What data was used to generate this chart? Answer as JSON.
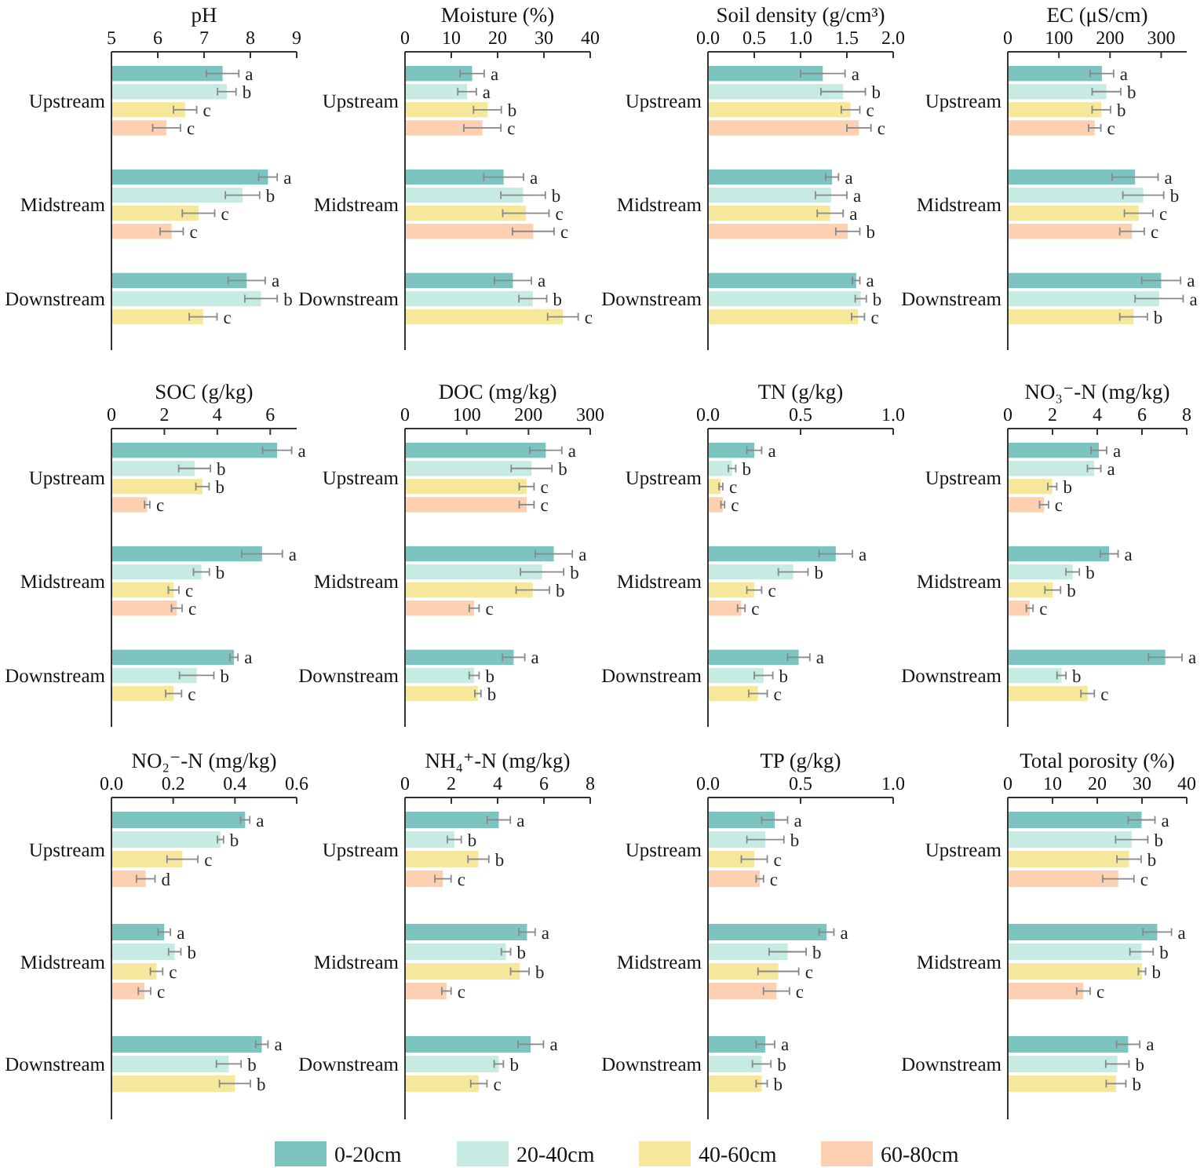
{
  "chart_data": [
    {
      "type": "bar",
      "orientation": "horizontal",
      "title": "pH",
      "categories": [
        "Upstream",
        "Midstream",
        "Downstream"
      ],
      "xlim": [
        5,
        9
      ],
      "xticks": [
        5,
        6,
        7,
        8,
        9
      ],
      "legend": "bottom",
      "series": [
        {
          "name": "0-20cm",
          "color": "#7dc4c0",
          "values": [
            7.4,
            8.38,
            7.92
          ],
          "errors": [
            0.35,
            0.2,
            0.4
          ],
          "value_labels": [
            "a",
            "a",
            "a"
          ]
        },
        {
          "name": "20-40cm",
          "color": "#c5ebe3",
          "values": [
            7.49,
            7.83,
            8.23
          ],
          "errors": [
            0.2,
            0.37,
            0.35
          ],
          "value_labels": [
            "b",
            "b",
            "b"
          ]
        },
        {
          "name": "40-60cm",
          "color": "#f5e79b",
          "values": [
            6.59,
            6.88,
            6.98
          ],
          "errors": [
            0.25,
            0.35,
            0.3
          ],
          "value_labels": [
            "c",
            "c",
            "c"
          ]
        },
        {
          "name": "60-80cm",
          "color": "#fcd0b0",
          "values": [
            6.19,
            6.3,
            null
          ],
          "errors": [
            0.3,
            0.25,
            null
          ],
          "value_labels": [
            "c",
            "c",
            null
          ]
        }
      ]
    },
    {
      "type": "bar",
      "orientation": "horizontal",
      "title": "Moisture (%)",
      "categories": [
        "Upstream",
        "Midstream",
        "Downstream"
      ],
      "xlim": [
        0,
        40
      ],
      "xticks": [
        0,
        10,
        20,
        30,
        40
      ],
      "legend": "bottom",
      "series": [
        {
          "name": "0-20cm",
          "color": "#7dc4c0",
          "values": [
            14.5,
            21.3,
            23.3
          ],
          "errors": [
            2.6,
            4.3,
            4
          ],
          "value_labels": [
            "a",
            "a",
            "a"
          ]
        },
        {
          "name": "20-40cm",
          "color": "#c5ebe3",
          "values": [
            13.4,
            25.5,
            27.6
          ],
          "errors": [
            2,
            4.8,
            3
          ],
          "value_labels": [
            "a",
            "b",
            "b"
          ]
        },
        {
          "name": "40-60cm",
          "color": "#f5e79b",
          "values": [
            17.8,
            26.1,
            34.1
          ],
          "errors": [
            3,
            5,
            3.3
          ],
          "value_labels": [
            "b",
            "c",
            "c"
          ]
        },
        {
          "name": "60-80cm",
          "color": "#fcd0b0",
          "values": [
            16.7,
            27.7,
            null
          ],
          "errors": [
            4,
            4.5,
            null
          ],
          "value_labels": [
            "c",
            "c",
            null
          ]
        }
      ]
    },
    {
      "type": "bar",
      "orientation": "horizontal",
      "title": "Soil density (g/cm³)",
      "categories": [
        "Upstream",
        "Midstream",
        "Downstream"
      ],
      "xlim": [
        0,
        2
      ],
      "xticks": [
        {
          "value": 0,
          "label": "0.0"
        },
        0.5,
        {
          "value": 1,
          "label": "1.0"
        },
        1.5,
        {
          "value": 2,
          "label": "2.0"
        }
      ],
      "legend": "bottom",
      "series": [
        {
          "name": "0-20cm",
          "color": "#7dc4c0",
          "values": [
            1.24,
            1.34,
            1.6
          ],
          "errors": [
            0.24,
            0.07,
            0.04
          ],
          "value_labels": [
            "a",
            "a",
            "a"
          ]
        },
        {
          "name": "20-40cm",
          "color": "#c5ebe3",
          "values": [
            1.46,
            1.33,
            1.65
          ],
          "errors": [
            0.24,
            0.17,
            0.06
          ],
          "value_labels": [
            "b",
            "a",
            "b"
          ]
        },
        {
          "name": "40-60cm",
          "color": "#f5e79b",
          "values": [
            1.54,
            1.32,
            1.62
          ],
          "errors": [
            0.1,
            0.14,
            0.07
          ],
          "value_labels": [
            "c",
            "a",
            "c"
          ]
        },
        {
          "name": "60-80cm",
          "color": "#fcd0b0",
          "values": [
            1.63,
            1.51,
            null
          ],
          "errors": [
            0.13,
            0.13,
            null
          ],
          "value_labels": [
            "c",
            "b",
            null
          ]
        }
      ]
    },
    {
      "type": "bar",
      "orientation": "horizontal",
      "title": "EC (μS/cm)",
      "categories": [
        "Upstream",
        "Midstream",
        "Downstream"
      ],
      "xlim": [
        0,
        350
      ],
      "xticks": [
        0,
        100,
        200,
        300
      ],
      "legend": "bottom",
      "series": [
        {
          "name": "0-20cm",
          "color": "#7dc4c0",
          "values": [
            184,
            249,
            300
          ],
          "errors": [
            23,
            45,
            38
          ],
          "value_labels": [
            "a",
            "a",
            "a"
          ]
        },
        {
          "name": "20-40cm",
          "color": "#c5ebe3",
          "values": [
            193,
            265,
            296
          ],
          "errors": [
            28,
            40,
            47
          ],
          "value_labels": [
            "b",
            "b",
            "a"
          ]
        },
        {
          "name": "40-60cm",
          "color": "#f5e79b",
          "values": [
            183,
            256,
            246
          ],
          "errors": [
            18,
            28,
            27
          ],
          "value_labels": [
            "b",
            "c",
            "b"
          ]
        },
        {
          "name": "60-80cm",
          "color": "#fcd0b0",
          "values": [
            170,
            243,
            null
          ],
          "errors": [
            12,
            24,
            null
          ],
          "value_labels": [
            "c",
            "c",
            null
          ]
        }
      ]
    },
    {
      "type": "bar",
      "orientation": "horizontal",
      "title": "SOC (g/kg)",
      "categories": [
        "Upstream",
        "Midstream",
        "Downstream"
      ],
      "xlim": [
        0,
        7
      ],
      "xticks": [
        0,
        2,
        4,
        6
      ],
      "legend": "bottom",
      "series": [
        {
          "name": "0-20cm",
          "color": "#7dc4c0",
          "values": [
            6.26,
            5.69,
            4.63
          ],
          "errors": [
            0.55,
            0.77,
            0.15
          ],
          "value_labels": [
            "a",
            "a",
            "a"
          ]
        },
        {
          "name": "20-40cm",
          "color": "#c5ebe3",
          "values": [
            3.14,
            3.4,
            3.22
          ],
          "errors": [
            0.6,
            0.3,
            0.65
          ],
          "value_labels": [
            "b",
            "b",
            "b"
          ]
        },
        {
          "name": "40-60cm",
          "color": "#f5e79b",
          "values": [
            3.44,
            2.35,
            2.35
          ],
          "errors": [
            0.25,
            0.2,
            0.3
          ],
          "value_labels": [
            "b",
            "c",
            "c"
          ]
        },
        {
          "name": "60-80cm",
          "color": "#fcd0b0",
          "values": [
            1.35,
            2.47,
            null
          ],
          "errors": [
            0.1,
            0.2,
            null
          ],
          "value_labels": [
            "c",
            "c",
            null
          ]
        }
      ]
    },
    {
      "type": "bar",
      "orientation": "horizontal",
      "title": "DOC (mg/kg)",
      "categories": [
        "Upstream",
        "Midstream",
        "Downstream"
      ],
      "xlim": [
        0,
        300
      ],
      "xticks": [
        0,
        100,
        200,
        300
      ],
      "legend": "bottom",
      "series": [
        {
          "name": "0-20cm",
          "color": "#7dc4c0",
          "values": [
            228,
            241,
            176
          ],
          "errors": [
            26,
            30,
            18
          ],
          "value_labels": [
            "a",
            "a",
            "a"
          ]
        },
        {
          "name": "20-40cm",
          "color": "#c5ebe3",
          "values": [
            205,
            222,
            112
          ],
          "errors": [
            33,
            35,
            8
          ],
          "value_labels": [
            "b",
            "b",
            "b"
          ]
        },
        {
          "name": "40-60cm",
          "color": "#f5e79b",
          "values": [
            197,
            207,
            118
          ],
          "errors": [
            12,
            27,
            5
          ],
          "value_labels": [
            "c",
            "b",
            "b"
          ]
        },
        {
          "name": "60-80cm",
          "color": "#fcd0b0",
          "values": [
            197,
            112,
            null
          ],
          "errors": [
            12,
            8,
            null
          ],
          "value_labels": [
            "c",
            "c",
            null
          ]
        }
      ]
    },
    {
      "type": "bar",
      "orientation": "horizontal",
      "title": "TN (g/kg)",
      "categories": [
        "Upstream",
        "Midstream",
        "Downstream"
      ],
      "xlim": [
        0,
        1
      ],
      "xticks": [
        {
          "value": 0,
          "label": "0.0"
        },
        0.5,
        {
          "value": 1,
          "label": "1.0"
        }
      ],
      "legend": "bottom",
      "series": [
        {
          "name": "0-20cm",
          "color": "#7dc4c0",
          "values": [
            0.25,
            0.69,
            0.49
          ],
          "errors": [
            0.04,
            0.09,
            0.06
          ],
          "value_labels": [
            "a",
            "a",
            "a"
          ]
        },
        {
          "name": "20-40cm",
          "color": "#c5ebe3",
          "values": [
            0.13,
            0.46,
            0.3
          ],
          "errors": [
            0.02,
            0.08,
            0.05
          ],
          "value_labels": [
            "b",
            "b",
            "b"
          ]
        },
        {
          "name": "40-60cm",
          "color": "#f5e79b",
          "values": [
            0.07,
            0.25,
            0.27
          ],
          "errors": [
            0.01,
            0.04,
            0.05
          ],
          "value_labels": [
            "c",
            "c",
            "c"
          ]
        },
        {
          "name": "60-80cm",
          "color": "#fcd0b0",
          "values": [
            0.08,
            0.18,
            null
          ],
          "errors": [
            0.01,
            0.02,
            null
          ],
          "value_labels": [
            "c",
            "c",
            null
          ]
        }
      ]
    },
    {
      "type": "bar",
      "orientation": "horizontal",
      "title": "NO₃⁻-N (mg/kg)",
      "categories": [
        "Upstream",
        "Midstream",
        "Downstream"
      ],
      "xlim": [
        0,
        8
      ],
      "xticks": [
        0,
        2,
        4,
        6,
        8
      ],
      "legend": "bottom",
      "series": [
        {
          "name": "0-20cm",
          "color": "#7dc4c0",
          "values": [
            4.07,
            4.53,
            7.04
          ],
          "errors": [
            0.35,
            0.4,
            0.75
          ],
          "value_labels": [
            "a",
            "a",
            "a"
          ]
        },
        {
          "name": "20-40cm",
          "color": "#c5ebe3",
          "values": [
            3.86,
            2.9,
            2.4
          ],
          "errors": [
            0.3,
            0.3,
            0.2
          ],
          "value_labels": [
            "a",
            "b",
            "b"
          ]
        },
        {
          "name": "40-60cm",
          "color": "#f5e79b",
          "values": [
            1.99,
            2.01,
            3.57
          ],
          "errors": [
            0.2,
            0.35,
            0.3
          ],
          "value_labels": [
            "b",
            "b",
            "c"
          ]
        },
        {
          "name": "60-80cm",
          "color": "#fcd0b0",
          "values": [
            1.62,
            0.98,
            null
          ],
          "errors": [
            0.2,
            0.15,
            null
          ],
          "value_labels": [
            "c",
            "c",
            null
          ]
        }
      ]
    },
    {
      "type": "bar",
      "orientation": "horizontal",
      "title": "NO₂⁻-N (mg/kg)",
      "categories": [
        "Upstream",
        "Midstream",
        "Downstream"
      ],
      "xlim": [
        0,
        0.6
      ],
      "xticks": [
        {
          "value": 0,
          "label": "0.0"
        },
        0.2,
        0.4,
        0.6
      ],
      "legend": "bottom",
      "series": [
        {
          "name": "0-20cm",
          "color": "#7dc4c0",
          "values": [
            0.433,
            0.171,
            0.487
          ],
          "errors": [
            0.015,
            0.02,
            0.02
          ],
          "value_labels": [
            "a",
            "a",
            "a"
          ]
        },
        {
          "name": "20-40cm",
          "color": "#c5ebe3",
          "values": [
            0.353,
            0.205,
            0.38
          ],
          "errors": [
            0.01,
            0.02,
            0.04
          ],
          "value_labels": [
            "b",
            "b",
            "b"
          ]
        },
        {
          "name": "40-60cm",
          "color": "#f5e79b",
          "values": [
            0.23,
            0.146,
            0.4
          ],
          "errors": [
            0.05,
            0.02,
            0.05
          ],
          "value_labels": [
            "c",
            "c",
            "b"
          ]
        },
        {
          "name": "60-80cm",
          "color": "#fcd0b0",
          "values": [
            0.111,
            0.107,
            null
          ],
          "errors": [
            0.03,
            0.02,
            null
          ],
          "value_labels": [
            "d",
            "c",
            null
          ]
        }
      ]
    },
    {
      "type": "bar",
      "orientation": "horizontal",
      "title": "NH₄⁺-N (mg/kg)",
      "categories": [
        "Upstream",
        "Midstream",
        "Downstream"
      ],
      "xlim": [
        0,
        8
      ],
      "xticks": [
        0,
        2,
        4,
        6,
        8
      ],
      "legend": "bottom",
      "series": [
        {
          "name": "0-20cm",
          "color": "#7dc4c0",
          "values": [
            4.05,
            5.27,
            5.43
          ],
          "errors": [
            0.5,
            0.35,
            0.55
          ],
          "value_labels": [
            "a",
            "a",
            "a"
          ]
        },
        {
          "name": "20-40cm",
          "color": "#c5ebe3",
          "values": [
            2.13,
            4.36,
            4.05
          ],
          "errors": [
            0.3,
            0.2,
            0.2
          ],
          "value_labels": [
            "b",
            "b",
            "b"
          ]
        },
        {
          "name": "40-60cm",
          "color": "#f5e79b",
          "values": [
            3.17,
            4.96,
            3.19
          ],
          "errors": [
            0.45,
            0.4,
            0.35
          ],
          "value_labels": [
            "b",
            "b",
            "c"
          ]
        },
        {
          "name": "60-80cm",
          "color": "#fcd0b0",
          "values": [
            1.64,
            1.79,
            null
          ],
          "errors": [
            0.35,
            0.2,
            null
          ],
          "value_labels": [
            "c",
            "c",
            null
          ]
        }
      ]
    },
    {
      "type": "bar",
      "orientation": "horizontal",
      "title": "TP (g/kg)",
      "categories": [
        "Upstream",
        "Midstream",
        "Downstream"
      ],
      "xlim": [
        0,
        1
      ],
      "xticks": [
        {
          "value": 0,
          "label": "0.0"
        },
        0.5,
        {
          "value": 1,
          "label": "1.0"
        }
      ],
      "legend": "bottom",
      "series": [
        {
          "name": "0-20cm",
          "color": "#7dc4c0",
          "values": [
            0.36,
            0.64,
            0.31
          ],
          "errors": [
            0.07,
            0.04,
            0.05
          ],
          "value_labels": [
            "a",
            "a",
            "a"
          ]
        },
        {
          "name": "20-40cm",
          "color": "#c5ebe3",
          "values": [
            0.31,
            0.43,
            0.29
          ],
          "errors": [
            0.1,
            0.1,
            0.05
          ],
          "value_labels": [
            "b",
            "b",
            "b"
          ]
        },
        {
          "name": "40-60cm",
          "color": "#f5e79b",
          "values": [
            0.25,
            0.38,
            0.29
          ],
          "errors": [
            0.07,
            0.11,
            0.03
          ],
          "value_labels": [
            "c",
            "c",
            "b"
          ]
        },
        {
          "name": "60-80cm",
          "color": "#fcd0b0",
          "values": [
            0.28,
            0.37,
            null
          ],
          "errors": [
            0.02,
            0.07,
            null
          ],
          "value_labels": [
            "c",
            "c",
            null
          ]
        }
      ]
    },
    {
      "type": "bar",
      "orientation": "horizontal",
      "title": "Total porosity (%)",
      "categories": [
        "Upstream",
        "Midstream",
        "Downstream"
      ],
      "xlim": [
        0,
        40
      ],
      "xticks": [
        0,
        10,
        20,
        30,
        40
      ],
      "legend": "bottom",
      "series": [
        {
          "name": "0-20cm",
          "color": "#7dc4c0",
          "values": [
            29.9,
            33.4,
            26.9
          ],
          "errors": [
            3,
            3.2,
            2.6
          ],
          "value_labels": [
            "a",
            "a",
            "a"
          ]
        },
        {
          "name": "20-40cm",
          "color": "#c5ebe3",
          "values": [
            27.7,
            29.9,
            24.5
          ],
          "errors": [
            3.6,
            2.6,
            2.6
          ],
          "value_labels": [
            "b",
            "b",
            "b"
          ]
        },
        {
          "name": "40-60cm",
          "color": "#f5e79b",
          "values": [
            27.1,
            30,
            24.2
          ],
          "errors": [
            2.7,
            0.8,
            2.2
          ],
          "value_labels": [
            "b",
            "b",
            "b"
          ]
        },
        {
          "name": "60-80cm",
          "color": "#fcd0b0",
          "values": [
            24.7,
            16.9,
            null
          ],
          "errors": [
            3.5,
            1.5,
            null
          ],
          "value_labels": [
            "c",
            "c",
            null
          ]
        }
      ]
    }
  ]
}
